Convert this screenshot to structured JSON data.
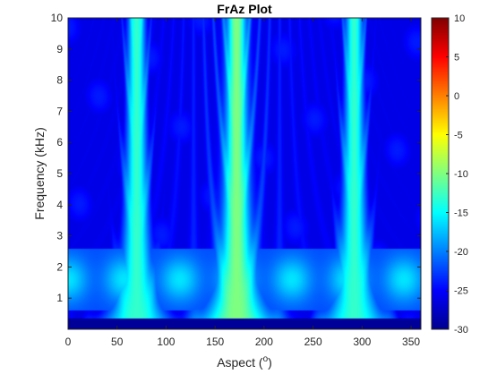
{
  "chart_data": {
    "type": "heatmap",
    "title": "FrAz Plot",
    "xlabel": "Aspect",
    "xlabel_unit_base": "(",
    "xlabel_unit_sup": "o",
    "xlabel_unit_end": ")",
    "ylabel": "Frequency (kHz)",
    "xlim": [
      0,
      360
    ],
    "ylim": [
      0,
      10
    ],
    "x_ticks": [
      0,
      50,
      100,
      150,
      200,
      250,
      300,
      350
    ],
    "y_ticks": [
      1,
      2,
      3,
      4,
      5,
      6,
      7,
      8,
      9,
      10
    ],
    "colorbar": {
      "colormap": "jet",
      "range": [
        -30,
        10
      ],
      "ticks": [
        10,
        5,
        0,
        -5,
        -10,
        -15,
        -20,
        -25,
        -30
      ]
    },
    "z_estimate": {
      "background": -28,
      "lobes": [
        {
          "aspect": 70,
          "peak": -13
        },
        {
          "aspect": 172,
          "peak": -10
        },
        {
          "aspect": 292,
          "peak": -13
        }
      ]
    }
  }
}
